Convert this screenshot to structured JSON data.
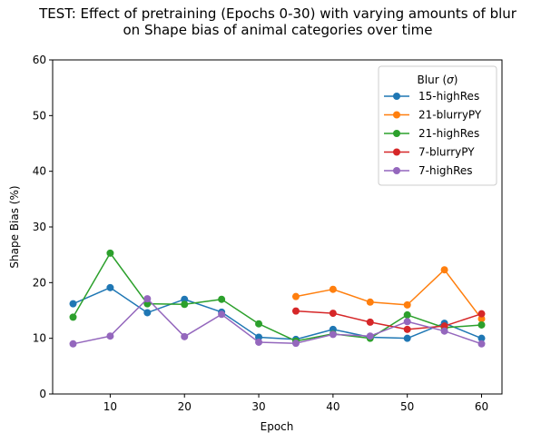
{
  "chart_data": {
    "type": "line",
    "title": [
      "TEST: Effect of pretraining (Epochs 0-30) with varying amounts of blur",
      "on Shape bias of animal categories over time"
    ],
    "xlabel": "Epoch",
    "ylabel": "Shape Bias (%)",
    "xlim": [
      2.25,
      62.75
    ],
    "ylim": [
      0,
      60
    ],
    "xticks": [
      10,
      20,
      30,
      40,
      50,
      60
    ],
    "yticks": [
      0,
      10,
      20,
      30,
      40,
      50,
      60
    ],
    "grid": false,
    "legend": {
      "title": "Blur (σ)",
      "position": "top-right"
    },
    "series": [
      {
        "name": "15-highRes",
        "color": "#1f77b4",
        "x": [
          5,
          10,
          15,
          20,
          25,
          30,
          35,
          40,
          45,
          50,
          55,
          60
        ],
        "y": [
          16.2,
          19.1,
          14.6,
          17.0,
          14.7,
          10.2,
          9.8,
          11.6,
          10.2,
          10.0,
          12.7,
          10.0
        ]
      },
      {
        "name": "21-blurryPY",
        "color": "#ff7f0e",
        "x": [
          35,
          40,
          45,
          50,
          55,
          60
        ],
        "y": [
          17.5,
          18.8,
          16.5,
          16.0,
          22.3,
          13.5
        ]
      },
      {
        "name": "21-highRes",
        "color": "#2ca02c",
        "x": [
          5,
          10,
          15,
          20,
          25,
          30,
          35,
          40,
          45,
          50,
          55,
          60
        ],
        "y": [
          13.8,
          25.3,
          16.2,
          16.1,
          17.0,
          12.6,
          9.5,
          10.8,
          10.0,
          14.2,
          11.9,
          12.4
        ]
      },
      {
        "name": "7-blurryPY",
        "color": "#d62728",
        "x": [
          35,
          40,
          45,
          50,
          55,
          60
        ],
        "y": [
          14.9,
          14.5,
          12.9,
          11.6,
          12.2,
          14.4
        ]
      },
      {
        "name": "7-highRes",
        "color": "#9467bd",
        "x": [
          5,
          10,
          15,
          20,
          25,
          30,
          35,
          40,
          45,
          50,
          55,
          60
        ],
        "y": [
          9.0,
          10.4,
          17.1,
          10.3,
          14.3,
          9.3,
          9.1,
          10.7,
          10.4,
          13.0,
          11.3,
          9.0
        ]
      }
    ]
  }
}
